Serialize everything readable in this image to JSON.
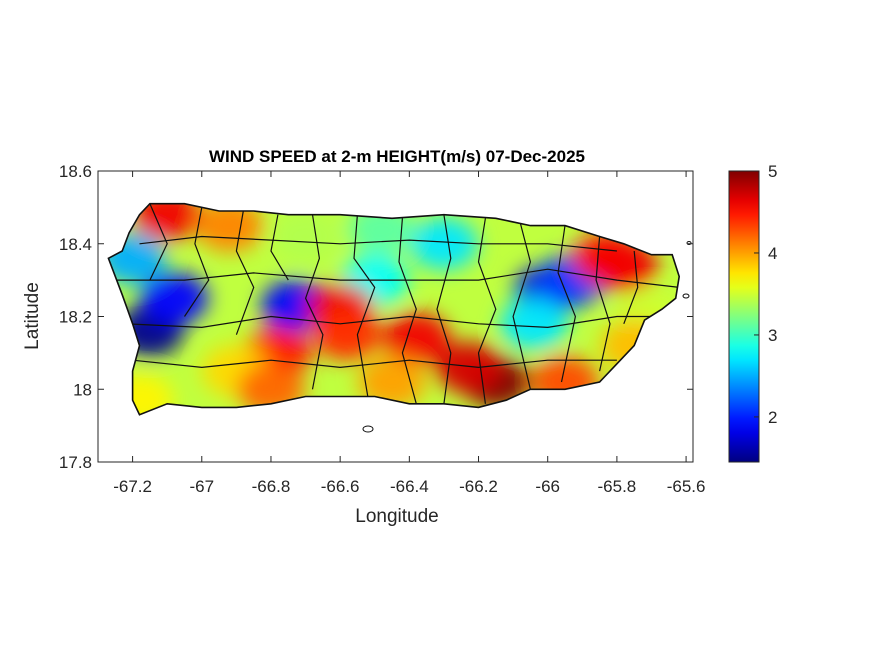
{
  "chart_data": {
    "type": "heatmap",
    "title": "WIND SPEED at 2-m HEIGHT(m/s) 07-Dec-2025",
    "xlabel": "Longitude",
    "ylabel": "Latitude",
    "xlim": [
      -67.3,
      -65.58
    ],
    "ylim": [
      17.8,
      18.6
    ],
    "x_ticks": [
      "-67.2",
      "-67",
      "-66.8",
      "-66.6",
      "-66.4",
      "-66.2",
      "-66",
      "-65.8",
      "-65.6"
    ],
    "x_tick_values": [
      -67.2,
      -67.0,
      -66.8,
      -66.6,
      -66.4,
      -66.2,
      -66.0,
      -65.8,
      -65.6
    ],
    "y_ticks": [
      "17.8",
      "18",
      "18.2",
      "18.4",
      "18.6"
    ],
    "y_tick_values": [
      17.8,
      18.0,
      18.2,
      18.4,
      18.6
    ],
    "colorbar": {
      "colormap": "jet",
      "range": [
        1.45,
        5.0
      ],
      "ticks": [
        "2",
        "3",
        "4",
        "5"
      ],
      "tick_values": [
        2,
        3,
        4,
        5
      ],
      "colors": [
        "#00008f",
        "#0000ff",
        "#00ffff",
        "#ffff00",
        "#ff0000",
        "#800000"
      ]
    },
    "grid": false,
    "region": "Puerto Rico municipalities",
    "coastline": [
      [
        -67.27,
        18.36
      ],
      [
        -67.23,
        18.38
      ],
      [
        -67.21,
        18.43
      ],
      [
        -67.18,
        18.48
      ],
      [
        -67.15,
        18.51
      ],
      [
        -67.05,
        18.51
      ],
      [
        -66.95,
        18.49
      ],
      [
        -66.85,
        18.49
      ],
      [
        -66.75,
        18.48
      ],
      [
        -66.6,
        18.48
      ],
      [
        -66.45,
        18.47
      ],
      [
        -66.3,
        18.48
      ],
      [
        -66.15,
        18.47
      ],
      [
        -66.05,
        18.45
      ],
      [
        -65.95,
        18.45
      ],
      [
        -65.85,
        18.42
      ],
      [
        -65.78,
        18.4
      ],
      [
        -65.7,
        18.37
      ],
      [
        -65.64,
        18.37
      ],
      [
        -65.62,
        18.31
      ],
      [
        -65.63,
        18.25
      ],
      [
        -65.67,
        18.22
      ],
      [
        -65.72,
        18.19
      ],
      [
        -65.75,
        18.12
      ],
      [
        -65.8,
        18.07
      ],
      [
        -65.85,
        18.02
      ],
      [
        -65.95,
        18.0
      ],
      [
        -66.05,
        18.0
      ],
      [
        -66.12,
        17.97
      ],
      [
        -66.2,
        17.95
      ],
      [
        -66.3,
        17.96
      ],
      [
        -66.4,
        17.96
      ],
      [
        -66.5,
        17.98
      ],
      [
        -66.6,
        17.98
      ],
      [
        -66.7,
        17.98
      ],
      [
        -66.8,
        17.96
      ],
      [
        -66.9,
        17.95
      ],
      [
        -67.0,
        17.95
      ],
      [
        -67.1,
        17.96
      ],
      [
        -67.18,
        17.93
      ],
      [
        -67.2,
        17.97
      ],
      [
        -67.2,
        18.05
      ],
      [
        -67.18,
        18.12
      ],
      [
        -67.2,
        18.18
      ],
      [
        -67.23,
        18.26
      ],
      [
        -67.27,
        18.36
      ]
    ],
    "wind_centers": [
      {
        "lon": -67.15,
        "lat": 18.16,
        "value": 1.5
      },
      {
        "lon": -67.08,
        "lat": 18.25,
        "value": 1.9
      },
      {
        "lon": -67.2,
        "lat": 18.36,
        "value": 2.5
      },
      {
        "lon": -66.73,
        "lat": 18.23,
        "value": 1.9
      },
      {
        "lon": -66.0,
        "lat": 18.27,
        "value": 1.8
      },
      {
        "lon": -65.93,
        "lat": 18.3,
        "value": 2.1
      },
      {
        "lon": -66.3,
        "lat": 18.4,
        "value": 2.7
      },
      {
        "lon": -66.5,
        "lat": 18.3,
        "value": 2.8
      },
      {
        "lon": -66.04,
        "lat": 18.18,
        "value": 2.7
      },
      {
        "lon": -67.1,
        "lat": 18.48,
        "value": 4.6
      },
      {
        "lon": -66.92,
        "lat": 18.45,
        "value": 4.1
      },
      {
        "lon": -66.6,
        "lat": 18.22,
        "value": 4.6
      },
      {
        "lon": -66.58,
        "lat": 18.15,
        "value": 4.4
      },
      {
        "lon": -66.78,
        "lat": 18.1,
        "value": 4.5
      },
      {
        "lon": -66.38,
        "lat": 18.14,
        "value": 4.6
      },
      {
        "lon": -66.15,
        "lat": 18.02,
        "value": 5.0
      },
      {
        "lon": -66.23,
        "lat": 18.06,
        "value": 4.7
      },
      {
        "lon": -65.83,
        "lat": 18.36,
        "value": 4.5
      },
      {
        "lon": -65.78,
        "lat": 18.34,
        "value": 4.6
      },
      {
        "lon": -66.9,
        "lat": 18.05,
        "value": 3.8
      },
      {
        "lon": -67.18,
        "lat": 17.97,
        "value": 3.7
      },
      {
        "lon": -65.95,
        "lat": 18.02,
        "value": 4.3
      },
      {
        "lon": -65.7,
        "lat": 18.2,
        "value": 3.5
      },
      {
        "lon": -65.75,
        "lat": 18.12,
        "value": 3.9
      },
      {
        "lon": -66.48,
        "lat": 18.44,
        "value": 3.1
      },
      {
        "lon": -66.7,
        "lat": 18.42,
        "value": 3.4
      },
      {
        "lon": -66.45,
        "lat": 18.02,
        "value": 4.0
      },
      {
        "lon": -66.8,
        "lat": 18.0,
        "value": 4.2
      }
    ]
  }
}
